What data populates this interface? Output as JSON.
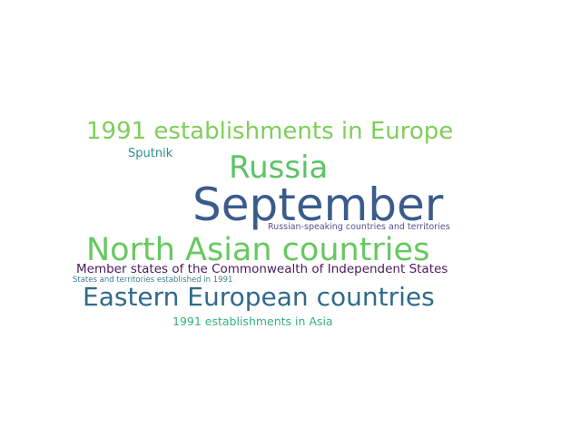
{
  "words": [
    {
      "text": "1991 establishments in Europe",
      "color": "#7fce5a"
    },
    {
      "text": "Sputnik",
      "color": "#2a8d8c"
    },
    {
      "text": "Russia",
      "color": "#5bc467"
    },
    {
      "text": "September",
      "color": "#3b5b8c"
    },
    {
      "text": "Russian-speaking countries and territories",
      "color": "#5b4c8c"
    },
    {
      "text": "North Asian countries",
      "color": "#67c860"
    },
    {
      "text": "Member states of the Commonwealth of Independent States",
      "color": "#4a1a5e"
    },
    {
      "text": "States and territories established in 1991",
      "color": "#3b7f8e"
    },
    {
      "text": "Eastern European countries",
      "color": "#2f6a8a"
    },
    {
      "text": "1991 establishments in Asia",
      "color": "#35b27a"
    }
  ]
}
